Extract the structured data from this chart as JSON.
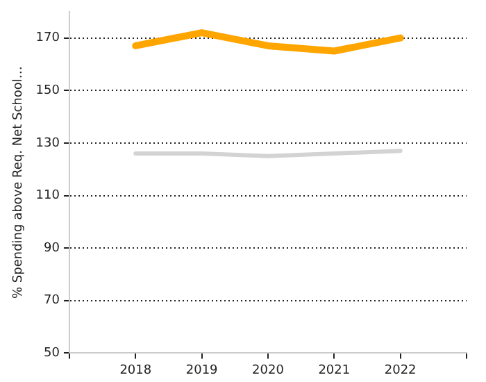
{
  "chart_data": {
    "type": "line",
    "ylabel": "% Spending above Req. Net School…",
    "x": [
      2018,
      2019,
      2020,
      2021,
      2022
    ],
    "series": [
      {
        "color": "#ffa500",
        "values": [
          167,
          172,
          167,
          165,
          170
        ]
      },
      {
        "color": "#d3d3d3",
        "values": [
          126,
          126,
          125,
          126,
          127
        ]
      }
    ],
    "xlim": [
      2017,
      2023
    ],
    "xticks": [
      {
        "value": 2017,
        "label": null
      },
      2018,
      2019,
      2020,
      2021,
      2022,
      {
        "value": 2023,
        "label": null
      }
    ],
    "ylim": [
      50,
      180
    ],
    "yticks": [
      50,
      70,
      90,
      110,
      130,
      150,
      170
    ],
    "grid": "y",
    "legend": false,
    "marker": "none",
    "line_style": "solid"
  }
}
